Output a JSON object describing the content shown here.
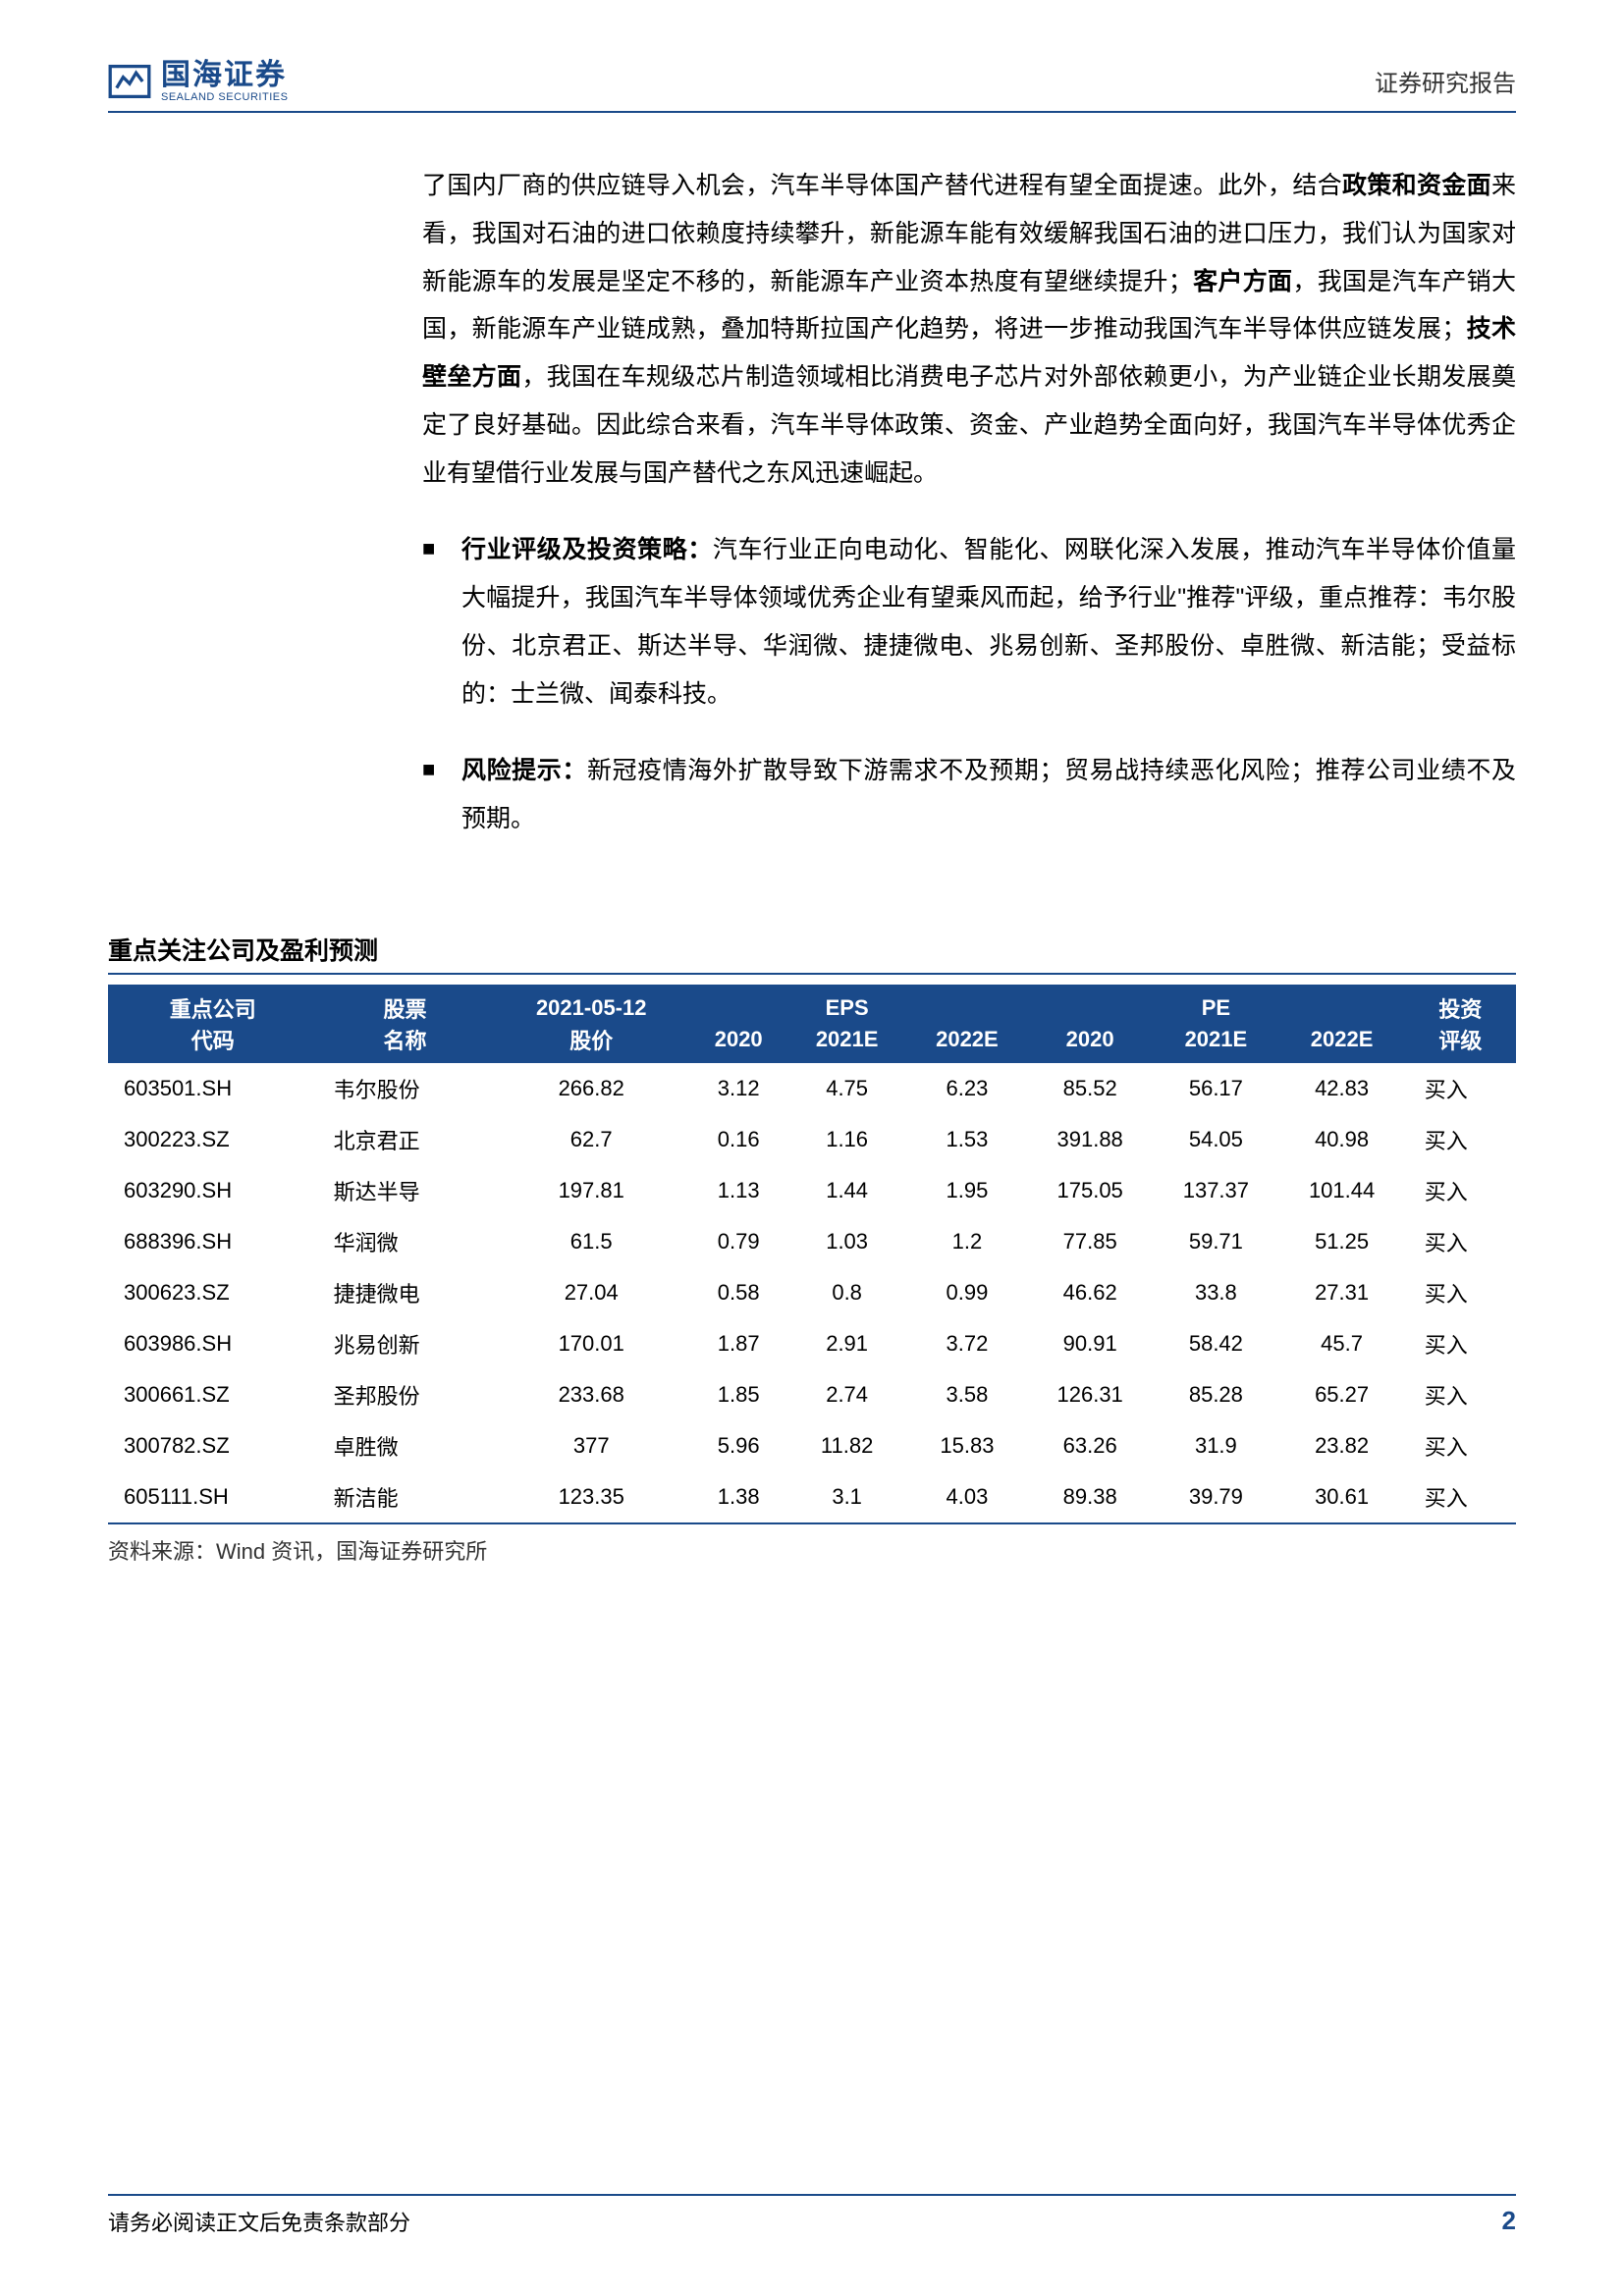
{
  "header": {
    "logo_cn": "国海证券",
    "logo_en": "SEALAND SECURITIES",
    "right_text": "证券研究报告"
  },
  "paragraphs": {
    "p1": "了国内厂商的供应链导入机会，汽车半导体国产替代进程有望全面提速。此外，结合",
    "p1_bold1": "政策和资金面",
    "p1_cont1": "来看，我国对石油的进口依赖度持续攀升，新能源车能有效缓解我国石油的进口压力，我们认为国家对新能源车的发展是坚定不移的，新能源车产业资本热度有望继续提升；",
    "p1_bold2": "客户方面",
    "p1_cont2": "，我国是汽车产销大国，新能源车产业链成熟，叠加特斯拉国产化趋势，将进一步推动我国汽车半导体供应链发展；",
    "p1_bold3": "技术壁垒方面",
    "p1_cont3": "，我国在车规级芯片制造领域相比消费电子芯片对外部依赖更小，为产业链企业长期发展奠定了良好基础。因此综合来看，汽车半导体政策、资金、产业趋势全面向好，我国汽车半导体优秀企业有望借行业发展与国产替代之东风迅速崛起。",
    "p2_bold": "行业评级及投资策略：",
    "p2": "汽车行业正向电动化、智能化、网联化深入发展，推动汽车半导体价值量大幅提升，我国汽车半导体领域优秀企业有望乘风而起，给予行业\"推荐\"评级，重点推荐：韦尔股份、北京君正、斯达半导、华润微、捷捷微电、兆易创新、圣邦股份、卓胜微、新洁能；受益标的：士兰微、闻泰科技。",
    "p3_bold": "风险提示：",
    "p3": "新冠疫情海外扩散导致下游需求不及预期；贸易战持续恶化风险；推荐公司业绩不及预期。"
  },
  "table": {
    "title": "重点关注公司及盈利预测",
    "header_row1": [
      "重点公司",
      "股票",
      "2021-05-12",
      "",
      "EPS",
      "",
      "",
      "PE",
      "",
      "投资"
    ],
    "header_row2": [
      "代码",
      "名称",
      "股价",
      "2020",
      "2021E",
      "2022E",
      "2020",
      "2021E",
      "2022E",
      "评级"
    ],
    "rows": [
      [
        "603501.SH",
        "韦尔股份",
        "266.82",
        "3.12",
        "4.75",
        "6.23",
        "85.52",
        "56.17",
        "42.83",
        "买入"
      ],
      [
        "300223.SZ",
        "北京君正",
        "62.7",
        "0.16",
        "1.16",
        "1.53",
        "391.88",
        "54.05",
        "40.98",
        "买入"
      ],
      [
        "603290.SH",
        "斯达半导",
        "197.81",
        "1.13",
        "1.44",
        "1.95",
        "175.05",
        "137.37",
        "101.44",
        "买入"
      ],
      [
        "688396.SH",
        "华润微",
        "61.5",
        "0.79",
        "1.03",
        "1.2",
        "77.85",
        "59.71",
        "51.25",
        "买入"
      ],
      [
        "300623.SZ",
        "捷捷微电",
        "27.04",
        "0.58",
        "0.8",
        "0.99",
        "46.62",
        "33.8",
        "27.31",
        "买入"
      ],
      [
        "603986.SH",
        "兆易创新",
        "170.01",
        "1.87",
        "2.91",
        "3.72",
        "90.91",
        "58.42",
        "45.7",
        "买入"
      ],
      [
        "300661.SZ",
        "圣邦股份",
        "233.68",
        "1.85",
        "2.74",
        "3.58",
        "126.31",
        "85.28",
        "65.27",
        "买入"
      ],
      [
        "300782.SZ",
        "卓胜微",
        "377",
        "5.96",
        "11.82",
        "15.83",
        "63.26",
        "31.9",
        "23.82",
        "买入"
      ],
      [
        "605111.SH",
        "新洁能",
        "123.35",
        "1.38",
        "3.1",
        "4.03",
        "89.38",
        "39.79",
        "30.61",
        "买入"
      ]
    ],
    "source": "资料来源：Wind 资讯，国海证券研究所"
  },
  "footer": {
    "left": "请务必阅读正文后免责条款部分",
    "page": "2"
  },
  "colors": {
    "brand": "#1a4a8a",
    "text": "#000000",
    "bg": "#ffffff"
  }
}
